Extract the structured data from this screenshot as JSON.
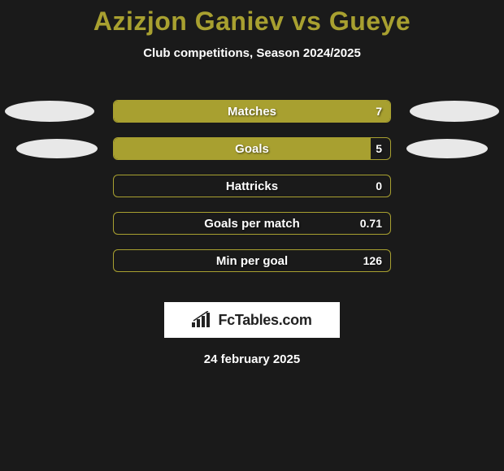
{
  "title": "Azizjon Ganiev vs Gueye",
  "subtitle": "Club competitions, Season 2024/2025",
  "colors": {
    "background": "#1a1a1a",
    "accent": "#a8a030",
    "text": "#ffffff",
    "pill": "#e8e8e8",
    "logo_bg": "#ffffff",
    "logo_text": "#222222"
  },
  "stats": [
    {
      "label": "Matches",
      "value": "7",
      "fill_pct": 100,
      "side_pills": "large"
    },
    {
      "label": "Goals",
      "value": "5",
      "fill_pct": 93,
      "side_pills": "small"
    },
    {
      "label": "Hattricks",
      "value": "0",
      "fill_pct": 0,
      "side_pills": "none"
    },
    {
      "label": "Goals per match",
      "value": "0.71",
      "fill_pct": 0,
      "side_pills": "none"
    },
    {
      "label": "Min per goal",
      "value": "126",
      "fill_pct": 0,
      "side_pills": "none"
    }
  ],
  "footer": {
    "logo_text": "FcTables.com",
    "date": "24 february 2025"
  }
}
